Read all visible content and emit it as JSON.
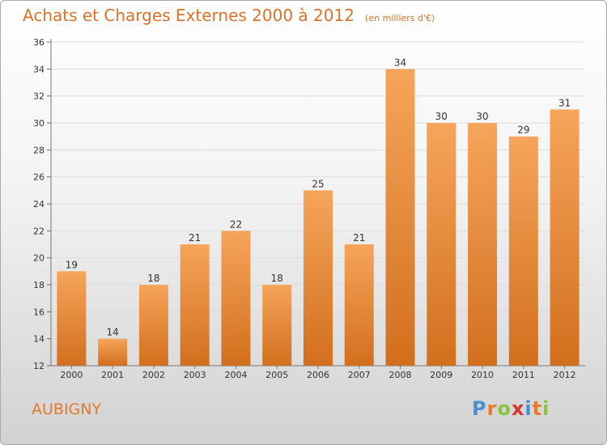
{
  "title": "Achats et Charges Externes 2000 à 2012",
  "subtitle": "(en milliers d'€)",
  "location": "AUBIGNY",
  "brand": {
    "letters": [
      "P",
      "r",
      "o",
      "x",
      "i",
      "t",
      "i"
    ],
    "colors": [
      "#4a8fd4",
      "#e8792d",
      "#8cc43f",
      "#d7352f",
      "#4a8fd4",
      "#e8792d",
      "#8cc43f"
    ]
  },
  "colors": {
    "bar_top": "#f6a55a",
    "bar_bottom": "#d26f1e",
    "title": "#d9722a"
  },
  "chart_data": {
    "type": "bar",
    "categories": [
      "2000",
      "2001",
      "2002",
      "2003",
      "2004",
      "2005",
      "2006",
      "2007",
      "2008",
      "2009",
      "2010",
      "2011",
      "2012"
    ],
    "values": [
      19,
      14,
      18,
      21,
      22,
      18,
      25,
      21,
      34,
      30,
      30,
      29,
      31
    ],
    "data_labels": [
      "19",
      "14",
      "18",
      "21",
      "22",
      "18",
      "25",
      "21",
      "34",
      "30",
      "30",
      "29",
      "31"
    ],
    "yticks": [
      "12",
      "14",
      "16",
      "18",
      "20",
      "22",
      "24",
      "26",
      "28",
      "30",
      "32",
      "34",
      "36"
    ],
    "ylim": [
      12,
      36
    ],
    "grid": true,
    "legend": "none"
  }
}
